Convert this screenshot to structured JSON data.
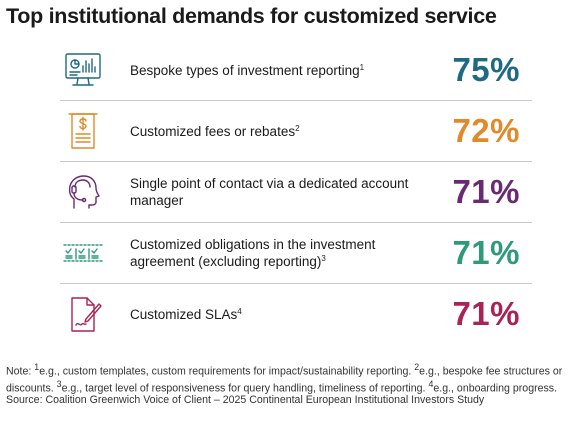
{
  "title": "Top institutional demands for customized service",
  "items": [
    {
      "label": "Bespoke types of investment reporting",
      "note_ref": "1",
      "value": "75%",
      "color": "#1e6a82",
      "icon": "reporting-dashboard-icon"
    },
    {
      "label": "Customized fees or rebates",
      "note_ref": "2",
      "value": "72%",
      "color": "#e08a2a",
      "icon": "invoice-icon"
    },
    {
      "label": "Single point of contact via a dedicated account manager",
      "note_ref": "",
      "value": "71%",
      "color": "#6a2a72",
      "icon": "headset-person-icon"
    },
    {
      "label": "Customized obligations in the investment agreement (excluding reporting)",
      "note_ref": "3",
      "value": "71%",
      "color": "#2f9a7a",
      "icon": "checklist-icon"
    },
    {
      "label": "Customized SLAs",
      "note_ref": "4",
      "value": "71%",
      "color": "#a82456",
      "icon": "contract-pen-icon"
    }
  ],
  "notes": {
    "prefix": "Note: ",
    "n1": "1",
    "t1": "e.g., custom templates, custom requirements for impact/sustainability reporting. ",
    "n2": "2",
    "t2": "e.g., bespoke fee structures or discounts. ",
    "n3": "3",
    "t3": "e.g., target level of responsiveness for query handling, timeliness of reporting. ",
    "n4": "4",
    "t4": "e.g., onboarding progress.",
    "source": "Source: Coalition Greenwich Voice of Client – 2025 Continental European Institutional Investors Study"
  }
}
